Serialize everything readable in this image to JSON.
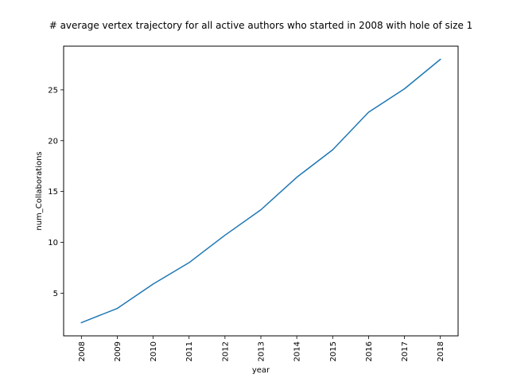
{
  "chart_data": {
    "type": "line",
    "title": "# average vertex trajectory for all active authors who started in 2008 with hole of size 1",
    "xlabel": "year",
    "ylabel": "num_Collaborations",
    "categories": [
      "2008",
      "2009",
      "2010",
      "2011",
      "2012",
      "2013",
      "2014",
      "2015",
      "2016",
      "2017",
      "2018"
    ],
    "series": [
      {
        "values": [
          2.1,
          3.5,
          5.9,
          8.0,
          10.7,
          13.2,
          16.4,
          19.1,
          22.8,
          25.1,
          28.0
        ]
      }
    ],
    "ylim": [
      0.8,
      29.3
    ],
    "yticks": [
      5,
      10,
      15,
      20,
      25
    ],
    "x_tick_rotation": "vertical",
    "grid": false,
    "legend": "none",
    "line_color": "#1f77b4"
  }
}
